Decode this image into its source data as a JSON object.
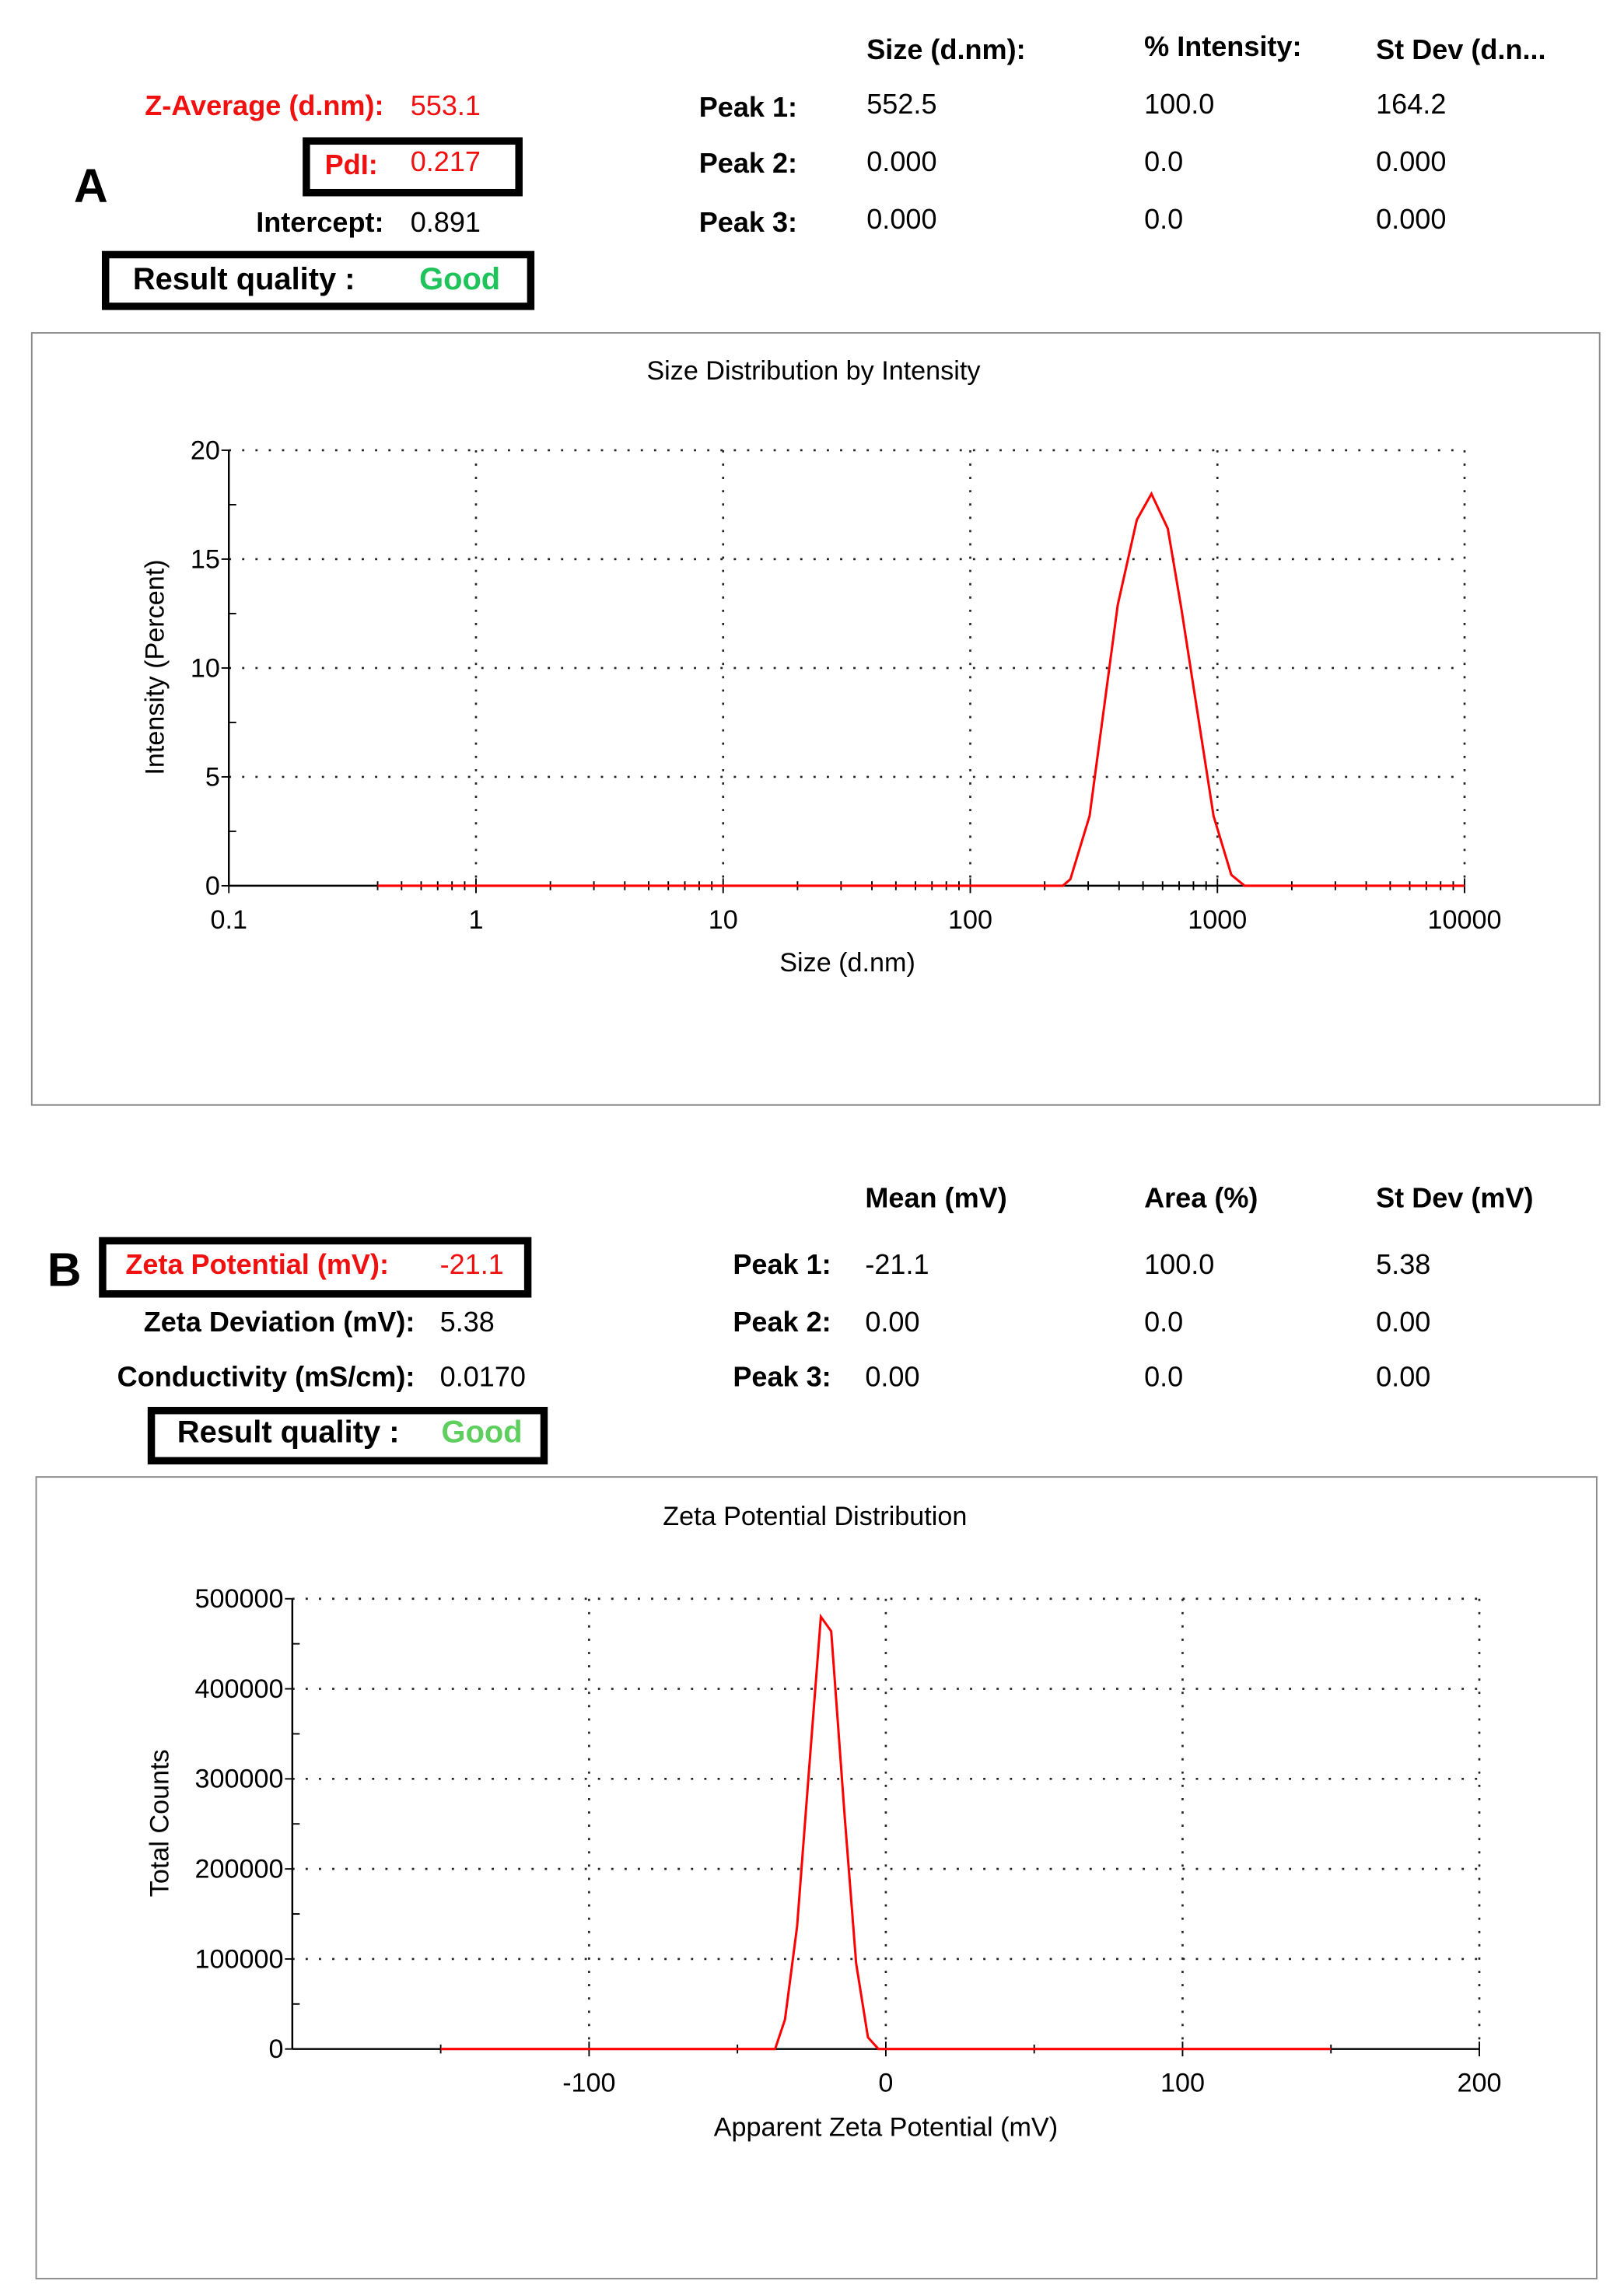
{
  "panel_a": {
    "letter": "A",
    "z_average_label": "Z-Average (d.nm):",
    "z_average_value": "553.1",
    "pdi_label": "PdI:",
    "pdi_value": "0.217",
    "intercept_label": "Intercept:",
    "intercept_value": "0.891",
    "result_quality_label": "Result quality :",
    "result_quality_value": "Good",
    "result_quality_color": "#1ec45a",
    "table": {
      "headers": [
        "Size (d.nm):",
        "% Intensity:",
        "St Dev (d.n..."
      ],
      "rows": [
        {
          "label": "Peak 1:",
          "values": [
            "552.5",
            "100.0",
            "164.2"
          ]
        },
        {
          "label": "Peak 2:",
          "values": [
            "0.000",
            "0.0",
            "0.000"
          ]
        },
        {
          "label": "Peak 3:",
          "values": [
            "0.000",
            "0.0",
            "0.000"
          ]
        }
      ]
    }
  },
  "panel_b": {
    "letter": "B",
    "zeta_potential_label": "Zeta Potential (mV):",
    "zeta_potential_value": "-21.1",
    "zeta_deviation_label": "Zeta Deviation (mV):",
    "zeta_deviation_value": "5.38",
    "conductivity_label": "Conductivity (mS/cm):",
    "conductivity_value": "0.0170",
    "result_quality_label": "Result quality :",
    "result_quality_value": "Good",
    "result_quality_color": "#5ecf5e",
    "table": {
      "headers": [
        "Mean (mV)",
        "Area (%)",
        "St Dev (mV)"
      ],
      "rows": [
        {
          "label": "Peak 1:",
          "values": [
            "-21.1",
            "100.0",
            "5.38"
          ]
        },
        {
          "label": "Peak 2:",
          "values": [
            "0.00",
            "0.0",
            "0.00"
          ]
        },
        {
          "label": "Peak 3:",
          "values": [
            "0.00",
            "0.0",
            "0.00"
          ]
        }
      ]
    }
  },
  "chart_data": [
    {
      "type": "line",
      "title": "Size Distribution by Intensity",
      "xlabel": "Size (d.nm)",
      "ylabel": "Intensity (Percent)",
      "xscale": "log",
      "xlim": [
        0.1,
        10000
      ],
      "ylim": [
        0,
        20
      ],
      "xticks": [
        0.1,
        1,
        10,
        100,
        1000,
        10000
      ],
      "xtick_labels": [
        "0.1",
        "1",
        "10",
        "100",
        "1000",
        "10000"
      ],
      "yticks": [
        0,
        5,
        10,
        15,
        20
      ],
      "ytick_labels": [
        "0",
        "5",
        "10",
        "15",
        "20"
      ],
      "grid": true,
      "series_color": "#ff0000",
      "series": [
        {
          "x": [
            0.4,
            237,
            254,
            304,
            395,
            472,
            541,
            630,
            713,
            965,
            1138,
            1288,
            10000
          ],
          "y": [
            0,
            0,
            0.3,
            3.2,
            12.9,
            16.8,
            18.0,
            16.4,
            12.8,
            3.2,
            0.5,
            0,
            0
          ]
        }
      ]
    },
    {
      "type": "line",
      "title": "Zeta Potential Distribution",
      "xlabel": "Apparent Zeta Potential (mV)",
      "ylabel": "Total Counts",
      "xlim": [
        -200,
        200
      ],
      "ylim": [
        0,
        500000
      ],
      "xticks": [
        -100,
        0,
        100,
        200
      ],
      "xtick_labels": [
        "-100",
        "0",
        "100",
        "200"
      ],
      "yticks": [
        0,
        100000,
        200000,
        300000,
        400000,
        500000
      ],
      "ytick_labels": [
        "0",
        "100000",
        "200000",
        "300000",
        "400000",
        "500000"
      ],
      "grid": true,
      "series_color": "#ff0000",
      "series": [
        {
          "x": [
            -150,
            -37.3,
            -34,
            -29.9,
            -25.9,
            -21.9,
            -18.4,
            -13.9,
            -10,
            -6,
            -2.5,
            150
          ],
          "y": [
            0,
            0,
            32800,
            136000,
            308000,
            480000,
            464000,
            259000,
            95000,
            13000,
            0,
            0
          ]
        }
      ]
    }
  ]
}
